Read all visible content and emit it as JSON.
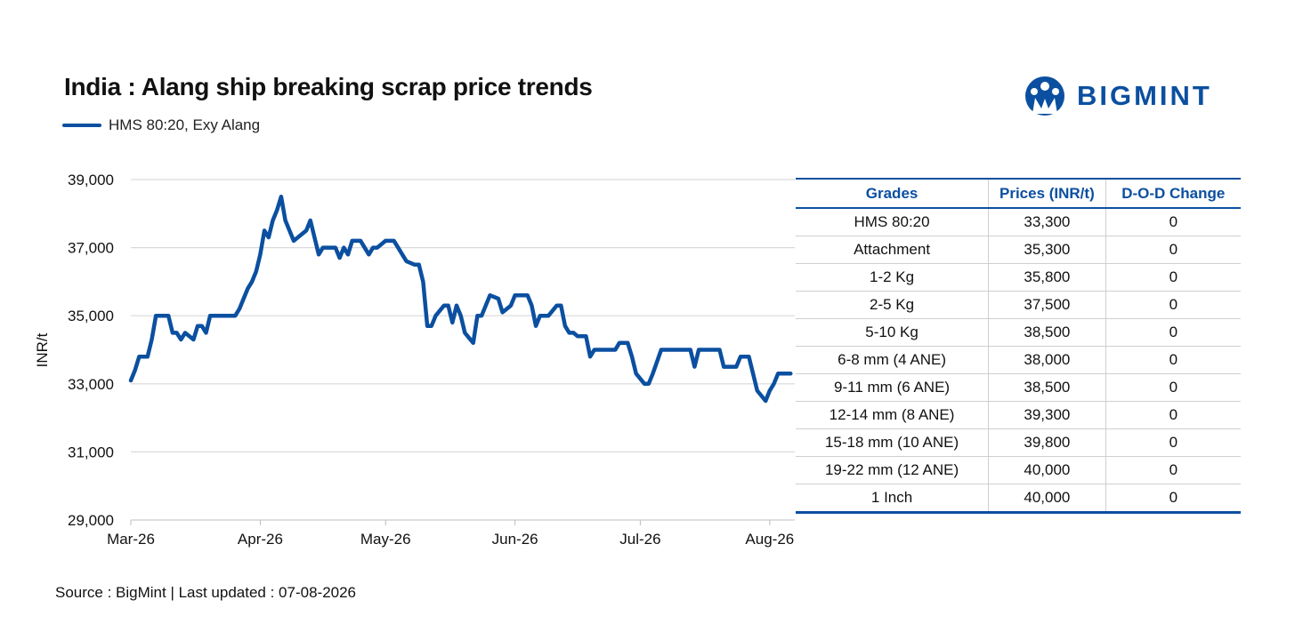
{
  "header": {
    "title": "India : Alang ship breaking scrap price trends",
    "brand": "BIGMINT"
  },
  "footer": {
    "source": "Source : BigMint | Last updated : 07-08-2026"
  },
  "colors": {
    "accent": "#0b4fa0",
    "grid": "#d9d9d9"
  },
  "chart_data": {
    "type": "line",
    "title": "India : Alang ship breaking scrap price trends",
    "xlabel": "",
    "ylabel": "INR/t",
    "ylim": [
      29000,
      39000
    ],
    "yticks": [
      29000,
      31000,
      33000,
      35000,
      37000,
      39000
    ],
    "xlim": [
      "2026-03-01",
      "2026-08-07"
    ],
    "xticks": [
      {
        "date": "2026-03-01",
        "label": "Mar-26"
      },
      {
        "date": "2026-04-01",
        "label": "Apr-26"
      },
      {
        "date": "2026-05-01",
        "label": "May-26"
      },
      {
        "date": "2026-06-01",
        "label": "Jun-26"
      },
      {
        "date": "2026-07-01",
        "label": "Jul-26"
      },
      {
        "date": "2026-08-01",
        "label": "Aug-26"
      }
    ],
    "grid": true,
    "legend": "top-left",
    "series": [
      {
        "name": "HMS 80:20, Exy Alang",
        "points": [
          [
            "2026-03-01",
            33100
          ],
          [
            "2026-03-02",
            33400
          ],
          [
            "2026-03-03",
            33800
          ],
          [
            "2026-03-05",
            33800
          ],
          [
            "2026-03-06",
            34300
          ],
          [
            "2026-03-07",
            35000
          ],
          [
            "2026-03-10",
            35000
          ],
          [
            "2026-03-11",
            34500
          ],
          [
            "2026-03-12",
            34500
          ],
          [
            "2026-03-13",
            34300
          ],
          [
            "2026-03-14",
            34500
          ],
          [
            "2026-03-16",
            34300
          ],
          [
            "2026-03-17",
            34700
          ],
          [
            "2026-03-18",
            34700
          ],
          [
            "2026-03-19",
            34500
          ],
          [
            "2026-03-20",
            35000
          ],
          [
            "2026-03-26",
            35000
          ],
          [
            "2026-03-27",
            35200
          ],
          [
            "2026-03-28",
            35500
          ],
          [
            "2026-03-29",
            35800
          ],
          [
            "2026-03-30",
            36000
          ],
          [
            "2026-03-31",
            36300
          ],
          [
            "2026-04-01",
            36800
          ],
          [
            "2026-04-02",
            37500
          ],
          [
            "2026-04-03",
            37300
          ],
          [
            "2026-04-04",
            37800
          ],
          [
            "2026-04-05",
            38100
          ],
          [
            "2026-04-06",
            38500
          ],
          [
            "2026-04-07",
            37800
          ],
          [
            "2026-04-08",
            37500
          ],
          [
            "2026-04-09",
            37200
          ],
          [
            "2026-04-12",
            37500
          ],
          [
            "2026-04-13",
            37800
          ],
          [
            "2026-04-15",
            36800
          ],
          [
            "2026-04-16",
            37000
          ],
          [
            "2026-04-19",
            37000
          ],
          [
            "2026-04-20",
            36700
          ],
          [
            "2026-04-21",
            37000
          ],
          [
            "2026-04-22",
            36800
          ],
          [
            "2026-04-23",
            37200
          ],
          [
            "2026-04-25",
            37200
          ],
          [
            "2026-04-27",
            36800
          ],
          [
            "2026-04-28",
            37000
          ],
          [
            "2026-04-29",
            37000
          ],
          [
            "2026-04-30",
            37100
          ],
          [
            "2026-05-01",
            37200
          ],
          [
            "2026-05-03",
            37200
          ],
          [
            "2026-05-04",
            37000
          ],
          [
            "2026-05-05",
            36800
          ],
          [
            "2026-05-06",
            36600
          ],
          [
            "2026-05-08",
            36500
          ],
          [
            "2026-05-09",
            36500
          ],
          [
            "2026-05-10",
            36000
          ],
          [
            "2026-05-11",
            34700
          ],
          [
            "2026-05-12",
            34700
          ],
          [
            "2026-05-13",
            35000
          ],
          [
            "2026-05-15",
            35300
          ],
          [
            "2026-05-16",
            35300
          ],
          [
            "2026-05-17",
            34800
          ],
          [
            "2026-05-18",
            35300
          ],
          [
            "2026-05-19",
            35000
          ],
          [
            "2026-05-20",
            34500
          ],
          [
            "2026-05-22",
            34200
          ],
          [
            "2026-05-23",
            35000
          ],
          [
            "2026-05-24",
            35000
          ],
          [
            "2026-05-25",
            35300
          ],
          [
            "2026-05-26",
            35600
          ],
          [
            "2026-05-28",
            35500
          ],
          [
            "2026-05-29",
            35100
          ],
          [
            "2026-05-31",
            35300
          ],
          [
            "2026-06-01",
            35600
          ],
          [
            "2026-06-04",
            35600
          ],
          [
            "2026-06-05",
            35300
          ],
          [
            "2026-06-06",
            34700
          ],
          [
            "2026-06-07",
            35000
          ],
          [
            "2026-06-09",
            35000
          ],
          [
            "2026-06-11",
            35300
          ],
          [
            "2026-06-12",
            35300
          ],
          [
            "2026-06-13",
            34700
          ],
          [
            "2026-06-14",
            34500
          ],
          [
            "2026-06-15",
            34500
          ],
          [
            "2026-06-16",
            34400
          ],
          [
            "2026-06-18",
            34400
          ],
          [
            "2026-06-19",
            33800
          ],
          [
            "2026-06-20",
            34000
          ],
          [
            "2026-06-25",
            34000
          ],
          [
            "2026-06-26",
            34200
          ],
          [
            "2026-06-28",
            34200
          ],
          [
            "2026-06-29",
            33800
          ],
          [
            "2026-06-30",
            33300
          ],
          [
            "2026-07-02",
            33000
          ],
          [
            "2026-07-03",
            33000
          ],
          [
            "2026-07-04",
            33300
          ],
          [
            "2026-07-06",
            34000
          ],
          [
            "2026-07-13",
            34000
          ],
          [
            "2026-07-14",
            33500
          ],
          [
            "2026-07-15",
            34000
          ],
          [
            "2026-07-20",
            34000
          ],
          [
            "2026-07-21",
            33500
          ],
          [
            "2026-07-24",
            33500
          ],
          [
            "2026-07-25",
            33800
          ],
          [
            "2026-07-27",
            33800
          ],
          [
            "2026-07-29",
            32800
          ],
          [
            "2026-07-31",
            32500
          ],
          [
            "2026-08-01",
            32800
          ],
          [
            "2026-08-02",
            33000
          ],
          [
            "2026-08-03",
            33300
          ],
          [
            "2026-08-06",
            33300
          ]
        ]
      }
    ]
  },
  "table": {
    "headers": [
      "Grades",
      "Prices (INR/t)",
      "D-O-D Change"
    ],
    "rows": [
      [
        "HMS 80:20",
        "33,300",
        "0"
      ],
      [
        "Attachment",
        "35,300",
        "0"
      ],
      [
        "1-2 Kg",
        "35,800",
        "0"
      ],
      [
        "2-5 Kg",
        "37,500",
        "0"
      ],
      [
        "5-10 Kg",
        "38,500",
        "0"
      ],
      [
        "6-8 mm (4 ANE)",
        "38,000",
        "0"
      ],
      [
        "9-11 mm (6 ANE)",
        "38,500",
        "0"
      ],
      [
        "12-14 mm (8 ANE)",
        "39,300",
        "0"
      ],
      [
        "15-18 mm (10 ANE)",
        "39,800",
        "0"
      ],
      [
        "19-22 mm (12 ANE)",
        "40,000",
        "0"
      ],
      [
        "1 Inch",
        "40,000",
        "0"
      ]
    ]
  }
}
